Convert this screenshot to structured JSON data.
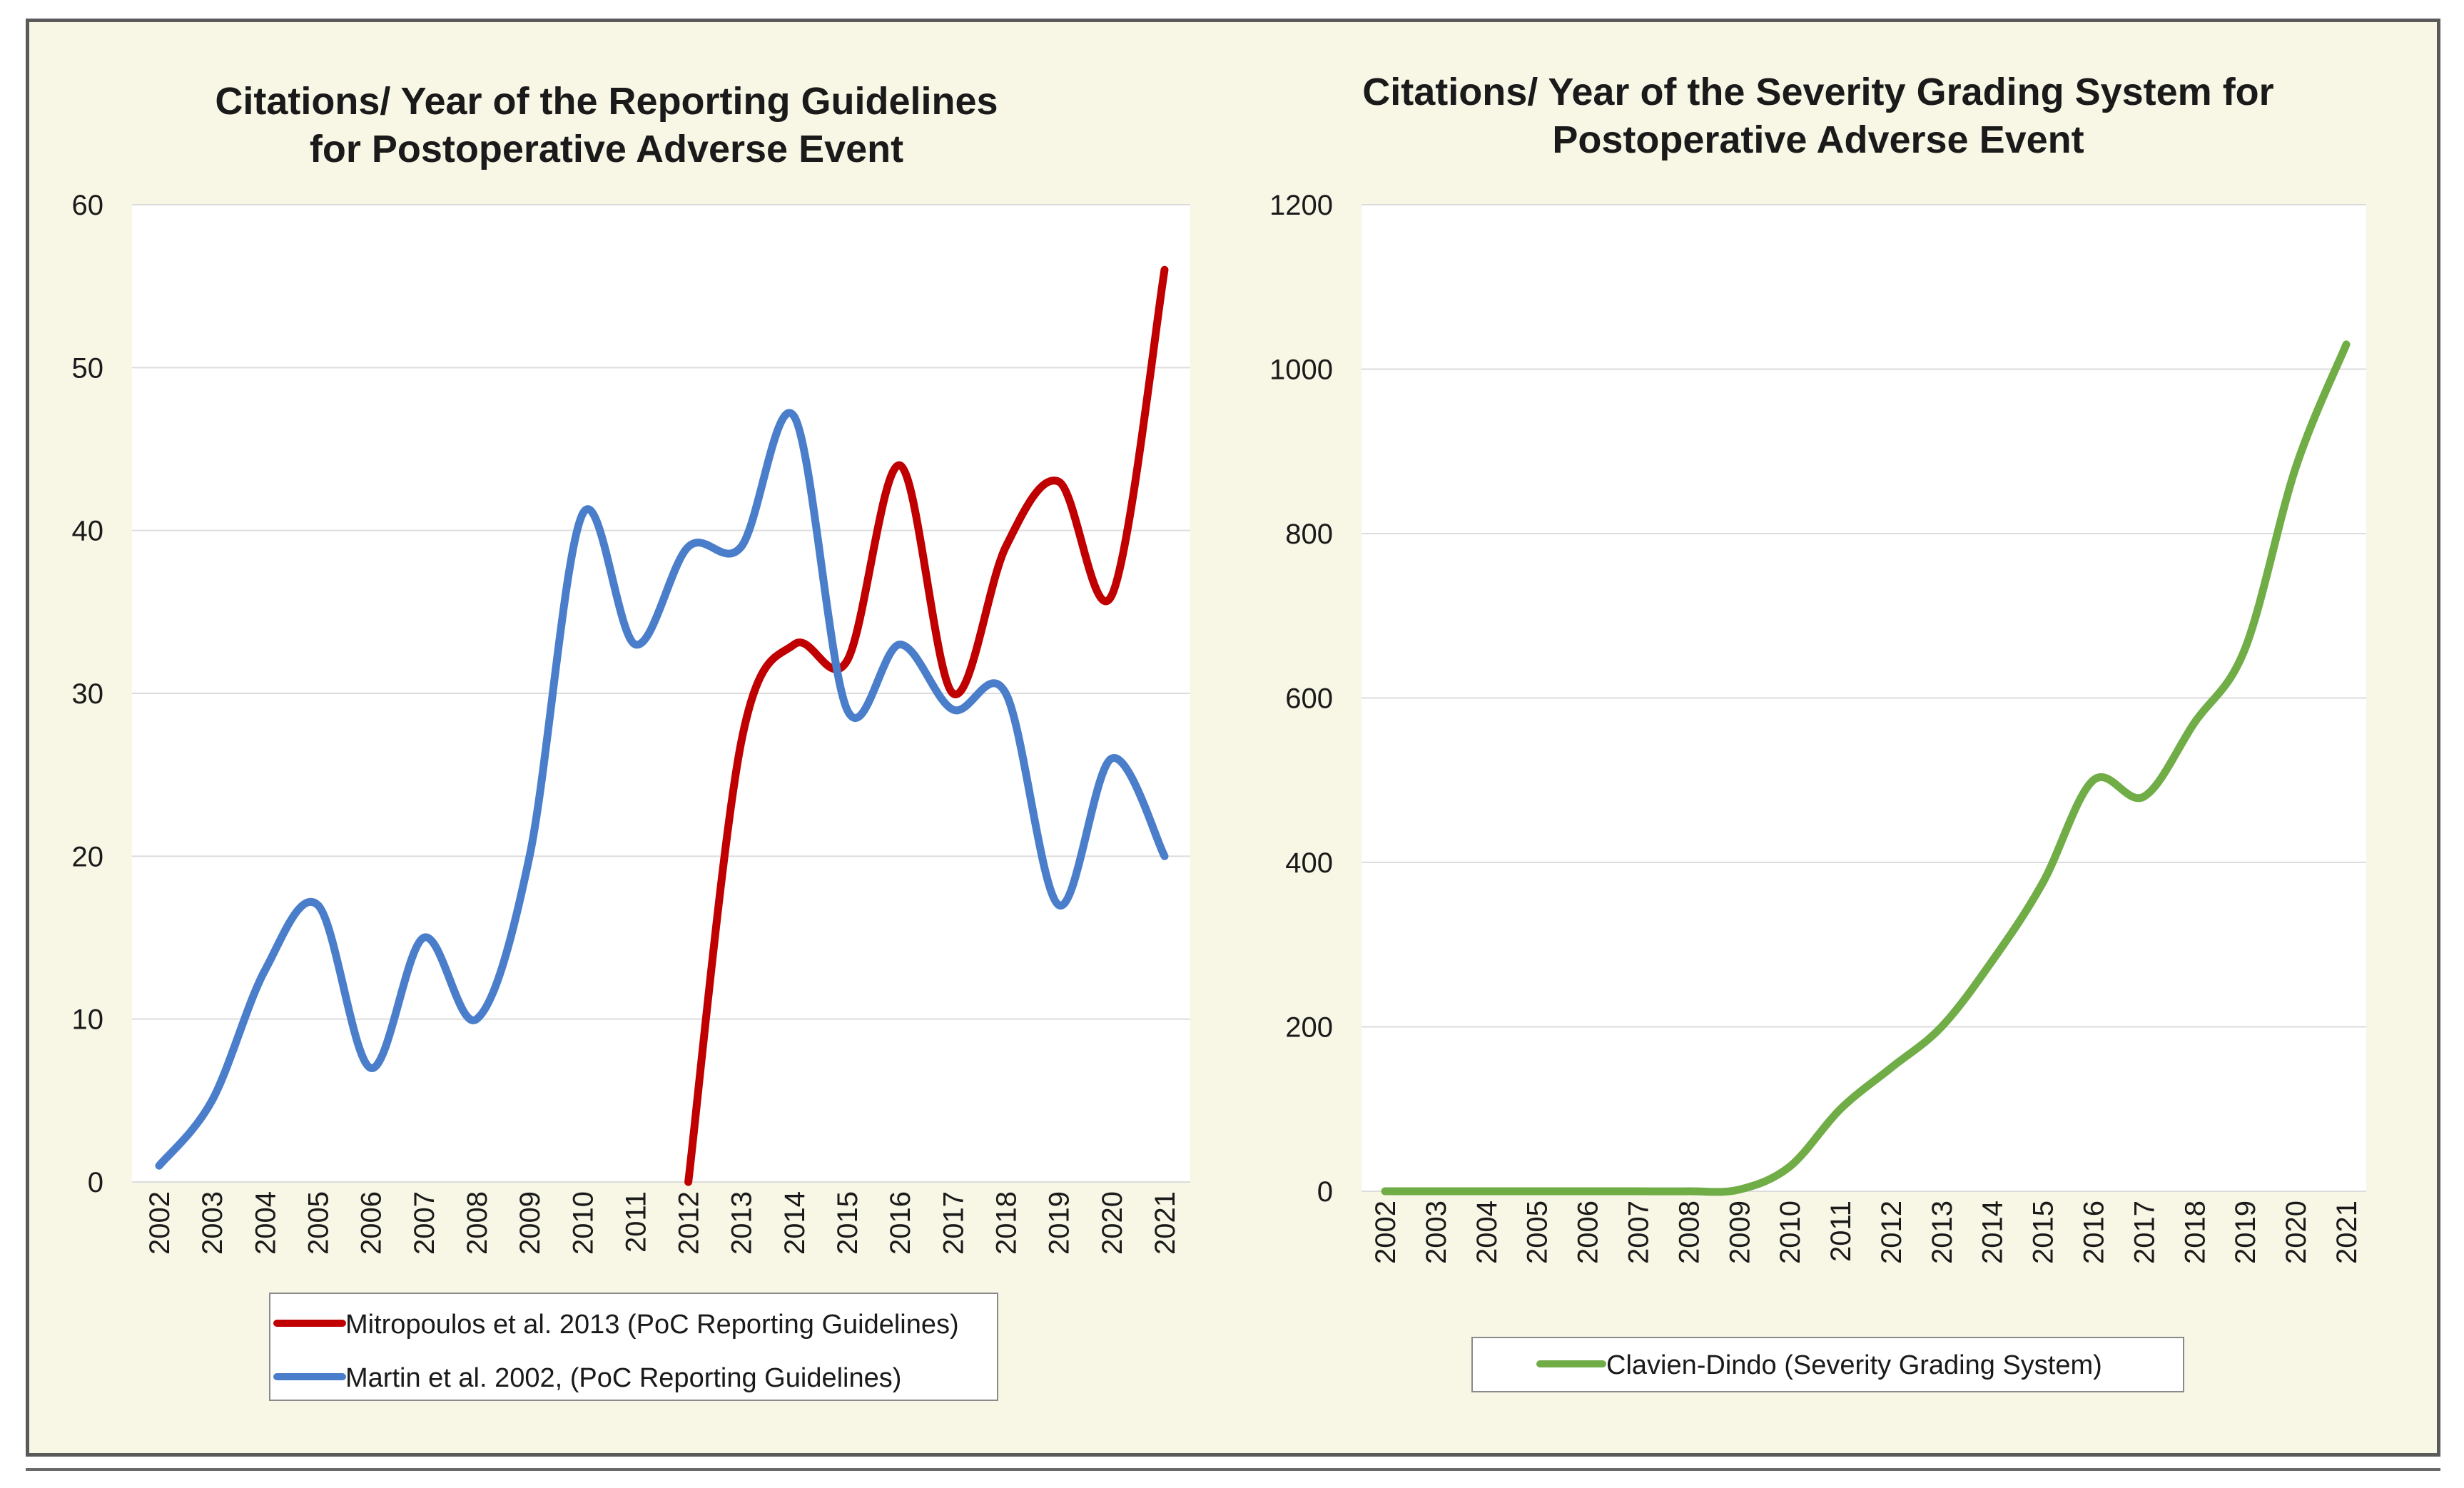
{
  "chart_data": [
    {
      "type": "line",
      "title_lines": [
        "Citations/ Year of the Reporting Guidelines",
        "for Postoperative Adverse Event"
      ],
      "categories": [
        "2002",
        "2003",
        "2004",
        "2005",
        "2006",
        "2007",
        "2008",
        "2009",
        "2010",
        "2011",
        "2012",
        "2013",
        "2014",
        "2015",
        "2016",
        "2017",
        "2018",
        "2019",
        "2020",
        "2021"
      ],
      "ylim": [
        0,
        60
      ],
      "yticks": [
        0,
        10,
        20,
        30,
        40,
        50,
        60
      ],
      "grid": true,
      "legend_position": "bottom",
      "series": [
        {
          "name": "Mitropoulos et al. 2013 (PoC Reporting Guidelines)",
          "color": "#c00000",
          "values": [
            null,
            null,
            null,
            null,
            null,
            null,
            null,
            null,
            null,
            null,
            0,
            27,
            33,
            32,
            44,
            30,
            39,
            43,
            36,
            56
          ]
        },
        {
          "name": "Martin et al. 2002, (PoC Reporting Guidelines)",
          "color": "#4a7ecb",
          "values": [
            1,
            5,
            13,
            17,
            7,
            15,
            10,
            20,
            41,
            33,
            39,
            39,
            47,
            29,
            33,
            29,
            30,
            17,
            26,
            20
          ]
        }
      ]
    },
    {
      "type": "line",
      "title_lines": [
        "Citations/ Year of the Severity Grading System for",
        "Postoperative Adverse Event"
      ],
      "categories": [
        "2002",
        "2003",
        "2004",
        "2005",
        "2006",
        "2007",
        "2008",
        "2009",
        "2010",
        "2011",
        "2012",
        "2013",
        "2014",
        "2015",
        "2016",
        "2017",
        "2018",
        "2019",
        "2020",
        "2021"
      ],
      "ylim": [
        0,
        1200
      ],
      "yticks": [
        0,
        200,
        400,
        600,
        800,
        1000,
        1200
      ],
      "grid": true,
      "legend_position": "bottom",
      "series": [
        {
          "name": "Clavien-Dindo (Severity Grading System)",
          "color": "#70ad47",
          "values": [
            0,
            0,
            0,
            0,
            0,
            0,
            0,
            2,
            30,
            100,
            150,
            200,
            280,
            375,
            500,
            480,
            570,
            660,
            880,
            1030
          ]
        }
      ]
    }
  ]
}
